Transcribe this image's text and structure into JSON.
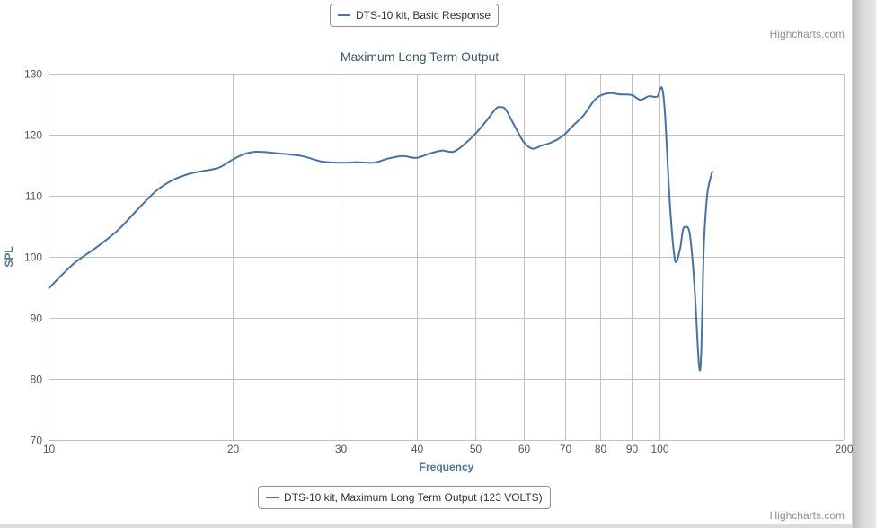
{
  "legend_top": {
    "label": "DTS-10 kit, Basic Response"
  },
  "legend_bottom": {
    "label": "DTS-10 kit, Maximum Long Term Output (123 VOLTS)"
  },
  "credits": {
    "top": "Highcharts.com",
    "bottom": "Highcharts.com"
  },
  "colors": {
    "series": "#4572a7",
    "grid": "#c0c0c0",
    "axis_title": "#4d759e"
  },
  "chart_data": {
    "type": "line",
    "title": "Maximum Long Term Output",
    "xlabel": "Frequency",
    "ylabel": "SPL",
    "x_scale": "log",
    "xlim": [
      10,
      200
    ],
    "ylim": [
      70,
      130
    ],
    "grid": true,
    "legend_position": "bottom",
    "x_ticks": [
      {
        "value": 10,
        "label": "10"
      },
      {
        "value": 20,
        "label": "20"
      },
      {
        "value": 30,
        "label": "30"
      },
      {
        "value": 40,
        "label": "40"
      },
      {
        "value": 50,
        "label": "50"
      },
      {
        "value": 60,
        "label": "60"
      },
      {
        "value": 70,
        "label": "70"
      },
      {
        "value": 80,
        "label": "80"
      },
      {
        "value": 90,
        "label": "90"
      },
      {
        "value": 100,
        "label": "100"
      },
      {
        "value": 200,
        "label": "200"
      }
    ],
    "y_ticks": [
      70,
      80,
      90,
      100,
      110,
      120,
      130
    ],
    "series": [
      {
        "name": "DTS-10 kit, Maximum Long Term Output (123 VOLTS)",
        "x": [
          10,
          11,
          12,
          13,
          14,
          15,
          16,
          17,
          18,
          19,
          20,
          21,
          22,
          24,
          26,
          28,
          30,
          32,
          34,
          36,
          38,
          40,
          42,
          44,
          46,
          48,
          50,
          52,
          54,
          55,
          56,
          58,
          60,
          62,
          64,
          66,
          68,
          70,
          72,
          75,
          78,
          80,
          83,
          86,
          90,
          93,
          96,
          99,
          100,
          101,
          102,
          104,
          106,
          108,
          109,
          110,
          112,
          114,
          116,
          117,
          118,
          119,
          120,
          122
        ],
        "y": [
          94.8,
          98.9,
          101.6,
          104.4,
          107.8,
          110.8,
          112.6,
          113.6,
          114.1,
          114.6,
          115.9,
          116.9,
          117.2,
          116.9,
          116.5,
          115.6,
          115.4,
          115.5,
          115.4,
          116.1,
          116.5,
          116.2,
          116.9,
          117.4,
          117.2,
          118.5,
          120.2,
          122.2,
          124.3,
          124.5,
          124.1,
          121.3,
          118.7,
          117.7,
          118.2,
          118.6,
          119.2,
          120.1,
          121.4,
          123.1,
          125.5,
          126.4,
          126.8,
          126.6,
          126.5,
          125.7,
          126.3,
          126.2,
          127.3,
          127.5,
          123.5,
          108.2,
          99.4,
          101.4,
          104.1,
          104.9,
          103.8,
          95.3,
          82.1,
          84.8,
          100.6,
          107.5,
          111.2,
          114.1
        ]
      }
    ]
  }
}
